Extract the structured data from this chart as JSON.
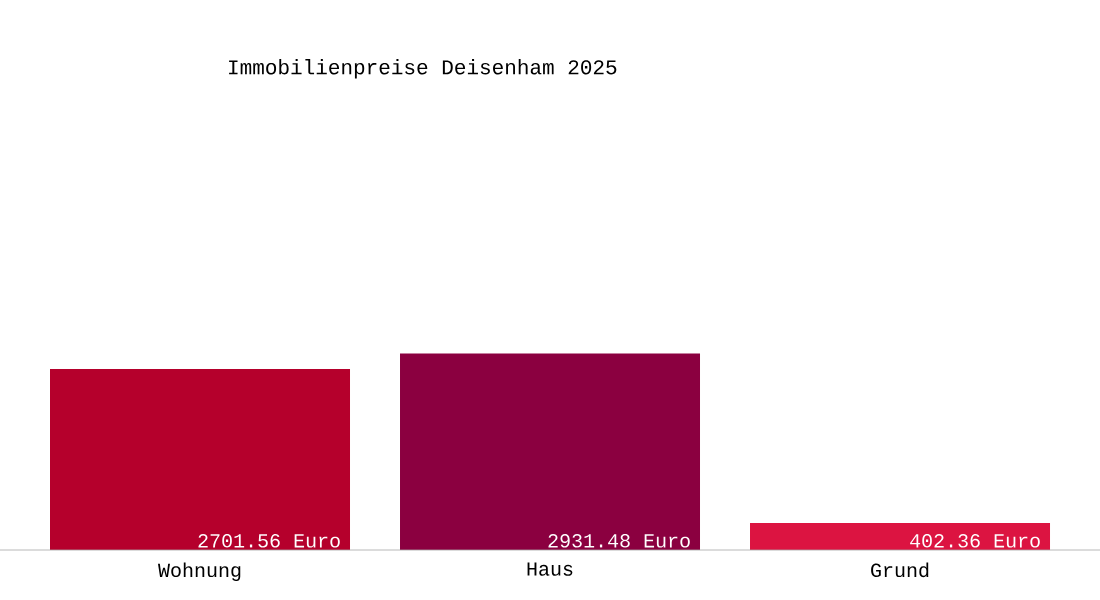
{
  "chart_data": {
    "type": "bar",
    "title": "Immobilienpreise Deisenham 2025",
    "categories": [
      "Wohnung",
      "Haus",
      "Grund"
    ],
    "values": [
      2701.56,
      2931.48,
      402.36
    ],
    "colors": [
      "#b5002c",
      "#8b0040",
      "#dc1441"
    ],
    "value_labels": [
      "2701.56 Euro",
      "2931.48 Euro",
      "402.36 Euro"
    ]
  }
}
